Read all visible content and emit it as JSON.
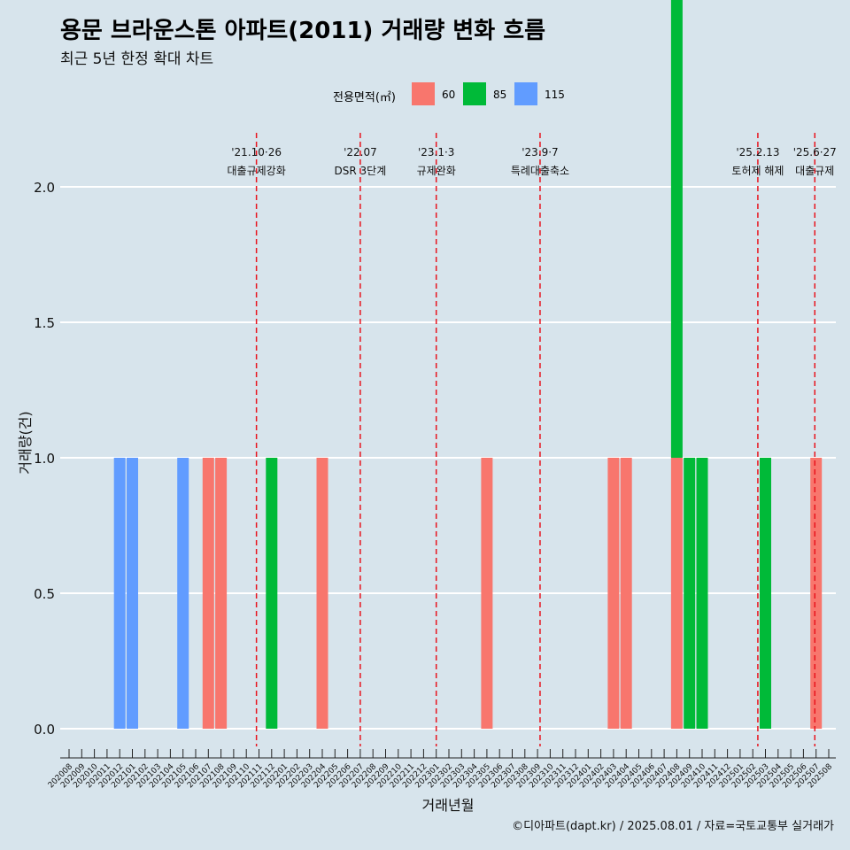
{
  "title": "용문 브라운스톤 아파트(2011) 거래량 변화 흐름",
  "subtitle": "최근 5년 한정 확대 차트",
  "caption": "©디아파트(dapt.kr) / 2025.08.01 / 자료=국토교통부 실거래가",
  "legend": {
    "title": "전용면적(㎡)",
    "items": [
      {
        "label": "60",
        "color": "#f8766d"
      },
      {
        "label": "85",
        "color": "#00ba38"
      },
      {
        "label": "115",
        "color": "#619cff"
      }
    ]
  },
  "chart_data": {
    "type": "bar",
    "xlabel": "거래년월",
    "ylabel": "거래량(건)",
    "ylim": [
      0,
      2.2
    ],
    "yticks": [
      "0.0",
      "0.5",
      "1.0",
      "1.5",
      "2.0"
    ],
    "categories": [
      "202008",
      "202009",
      "202010",
      "202011",
      "202012",
      "202101",
      "202102",
      "202103",
      "202104",
      "202105",
      "202106",
      "202107",
      "202108",
      "202109",
      "202110",
      "202111",
      "202112",
      "202201",
      "202202",
      "202203",
      "202204",
      "202205",
      "202206",
      "202207",
      "202208",
      "202209",
      "202210",
      "202211",
      "202212",
      "202301",
      "202302",
      "202303",
      "202304",
      "202305",
      "202306",
      "202307",
      "202308",
      "202309",
      "202310",
      "202311",
      "202312",
      "202401",
      "202402",
      "202403",
      "202404",
      "202405",
      "202406",
      "202407",
      "202408",
      "202409",
      "202410",
      "202411",
      "202412",
      "202501",
      "202502",
      "202503",
      "202504",
      "202505",
      "202506",
      "202507",
      "202508"
    ],
    "series": [
      {
        "name": "60",
        "color": "#f8766d",
        "points": [
          [
            "202107",
            1
          ],
          [
            "202108",
            1
          ],
          [
            "202204",
            1
          ],
          [
            "202305",
            1
          ],
          [
            "202403",
            1
          ],
          [
            "202404",
            1
          ],
          [
            "202408",
            1
          ],
          [
            "202507",
            1
          ]
        ]
      },
      {
        "name": "85",
        "color": "#00ba38",
        "points": [
          [
            "202112",
            1
          ],
          [
            "202408",
            2
          ],
          [
            "202409",
            1
          ],
          [
            "202410",
            1
          ],
          [
            "202503",
            1
          ]
        ]
      },
      {
        "name": "115",
        "color": "#619cff",
        "points": [
          [
            "202012",
            1
          ],
          [
            "202101",
            1
          ],
          [
            "202105",
            1
          ]
        ]
      }
    ],
    "events": [
      {
        "date": "202110.8",
        "line1": "'21.10·26",
        "line2": "대출규제강화"
      },
      {
        "date": "202207",
        "line1": "'22.07",
        "line2": "DSR 3단계"
      },
      {
        "date": "202301",
        "line1": "'23.1·3",
        "line2": "규제완화"
      },
      {
        "date": "202309.2",
        "line1": "'23.9·7",
        "line2": "특례대출축소"
      },
      {
        "date": "202502.4",
        "line1": "'25.2.13",
        "line2": "토허제 해제"
      },
      {
        "date": "202506.9",
        "line1": "'25.6·27",
        "line2": "대출규제"
      }
    ],
    "grid": true,
    "legend_position": "top"
  }
}
